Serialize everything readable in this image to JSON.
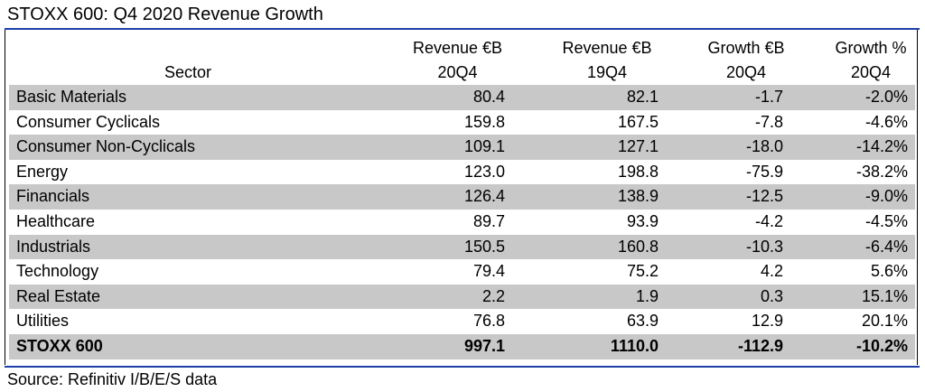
{
  "title": "STOXX 600: Q4 2020 Revenue Growth",
  "source": "Source: Refinitiv I/B/E/S data",
  "colors": {
    "rule": "#1f3fa8",
    "shade": "#c8c8c8"
  },
  "chart_data": {
    "type": "table",
    "title": "STOXX 600: Q4 2020 Revenue Growth",
    "columns": [
      {
        "line1": "",
        "line2": "Sector"
      },
      {
        "line1": "Revenue €B",
        "line2": "20Q4"
      },
      {
        "line1": "Revenue €B",
        "line2": "19Q4"
      },
      {
        "line1": "Growth €B",
        "line2": "20Q4"
      },
      {
        "line1": "Growth %",
        "line2": "20Q4"
      }
    ],
    "rows": [
      {
        "sector": "Basic Materials",
        "rev_20q4": "80.4",
        "rev_19q4": "82.1",
        "growth_eur": "-1.7",
        "growth_pct": "-2.0%"
      },
      {
        "sector": "Consumer Cyclicals",
        "rev_20q4": "159.8",
        "rev_19q4": "167.5",
        "growth_eur": "-7.8",
        "growth_pct": "-4.6%"
      },
      {
        "sector": "Consumer Non-Cyclicals",
        "rev_20q4": "109.1",
        "rev_19q4": "127.1",
        "growth_eur": "-18.0",
        "growth_pct": "-14.2%"
      },
      {
        "sector": "Energy",
        "rev_20q4": "123.0",
        "rev_19q4": "198.8",
        "growth_eur": "-75.9",
        "growth_pct": "-38.2%"
      },
      {
        "sector": "Financials",
        "rev_20q4": "126.4",
        "rev_19q4": "138.9",
        "growth_eur": "-12.5",
        "growth_pct": "-9.0%"
      },
      {
        "sector": "Healthcare",
        "rev_20q4": "89.7",
        "rev_19q4": "93.9",
        "growth_eur": "-4.2",
        "growth_pct": "-4.5%"
      },
      {
        "sector": "Industrials",
        "rev_20q4": "150.5",
        "rev_19q4": "160.8",
        "growth_eur": "-10.3",
        "growth_pct": "-6.4%"
      },
      {
        "sector": "Technology",
        "rev_20q4": "79.4",
        "rev_19q4": "75.2",
        "growth_eur": "4.2",
        "growth_pct": "5.6%"
      },
      {
        "sector": "Real Estate",
        "rev_20q4": "2.2",
        "rev_19q4": "1.9",
        "growth_eur": "0.3",
        "growth_pct": "15.1%"
      },
      {
        "sector": "Utilities",
        "rev_20q4": "76.8",
        "rev_19q4": "63.9",
        "growth_eur": "12.9",
        "growth_pct": "20.1%"
      }
    ],
    "total": {
      "sector": "STOXX 600",
      "rev_20q4": "997.1",
      "rev_19q4": "1110.0",
      "growth_eur": "-112.9",
      "growth_pct": "-10.2%"
    }
  }
}
